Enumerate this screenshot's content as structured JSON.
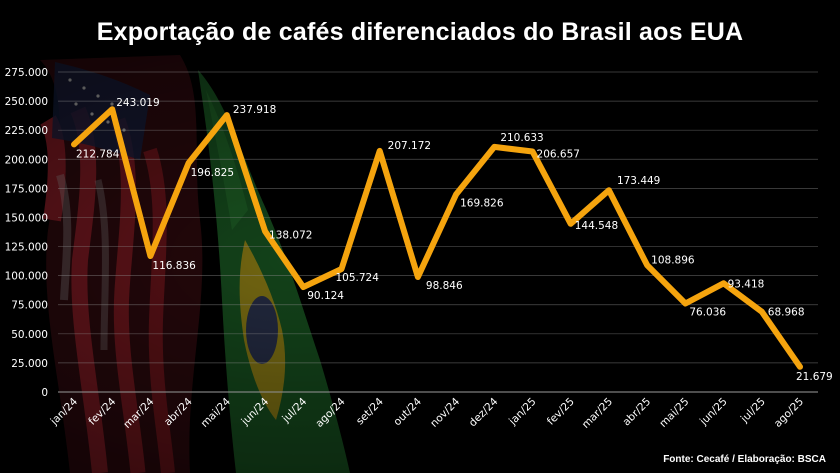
{
  "title": "Exportação de cafés diferenciados do Brasil aos EUA",
  "source": "Fonte: Cecafé / Elaboração: BSCA",
  "colors": {
    "line": "#f5a40e",
    "background": "#000000",
    "grid": "#8a8a8a",
    "text": "#ffffff",
    "flag_usa_red": "#8b1a22",
    "flag_brazil_green": "#1f6b2a",
    "flag_brazil_yellow": "#b8a41c"
  },
  "background_decoration": [
    "usa-flag",
    "brazil-flag"
  ],
  "chart_data": {
    "type": "line",
    "title": "Exportação de cafés diferenciados do Brasil aos EUA",
    "categories": [
      "jan/24",
      "fev/24",
      "mar/24",
      "abr/24",
      "mai/24",
      "jun/24",
      "jul/24",
      "ago/24",
      "set/24",
      "out/24",
      "nov/24",
      "dez/24",
      "jan/25",
      "fev/25",
      "mar/25",
      "abr/25",
      "mai/25",
      "jun/25",
      "jul/25",
      "ago/25"
    ],
    "series": [
      {
        "values": [
          212784,
          243019,
          116836,
          196825,
          237918,
          138072,
          90124,
          105724,
          207172,
          98846,
          169826,
          210633,
          206657,
          144548,
          173449,
          108896,
          76036,
          93418,
          68968,
          21679
        ],
        "labels": [
          "212.784",
          "243.019",
          "116.836",
          "196.825",
          "237.918",
          "138.072",
          "90.124",
          "105.724",
          "207.172",
          "98.846",
          "169.826",
          "210.633",
          "206.657",
          "144.548",
          "173.449",
          "108.896",
          "76.036",
          "93.418",
          "68.968",
          "21.679"
        ]
      }
    ],
    "yticks": [
      0,
      25000,
      50000,
      75000,
      100000,
      125000,
      150000,
      175000,
      200000,
      225000,
      250000,
      275000
    ],
    "ytick_labels": [
      "0",
      "25.000",
      "50.000",
      "75.000",
      "100.000",
      "125.000",
      "150.000",
      "175.000",
      "200.000",
      "225.000",
      "250.000",
      "275.000"
    ],
    "ylim": [
      0,
      275000
    ],
    "grid": true,
    "legend": false
  }
}
